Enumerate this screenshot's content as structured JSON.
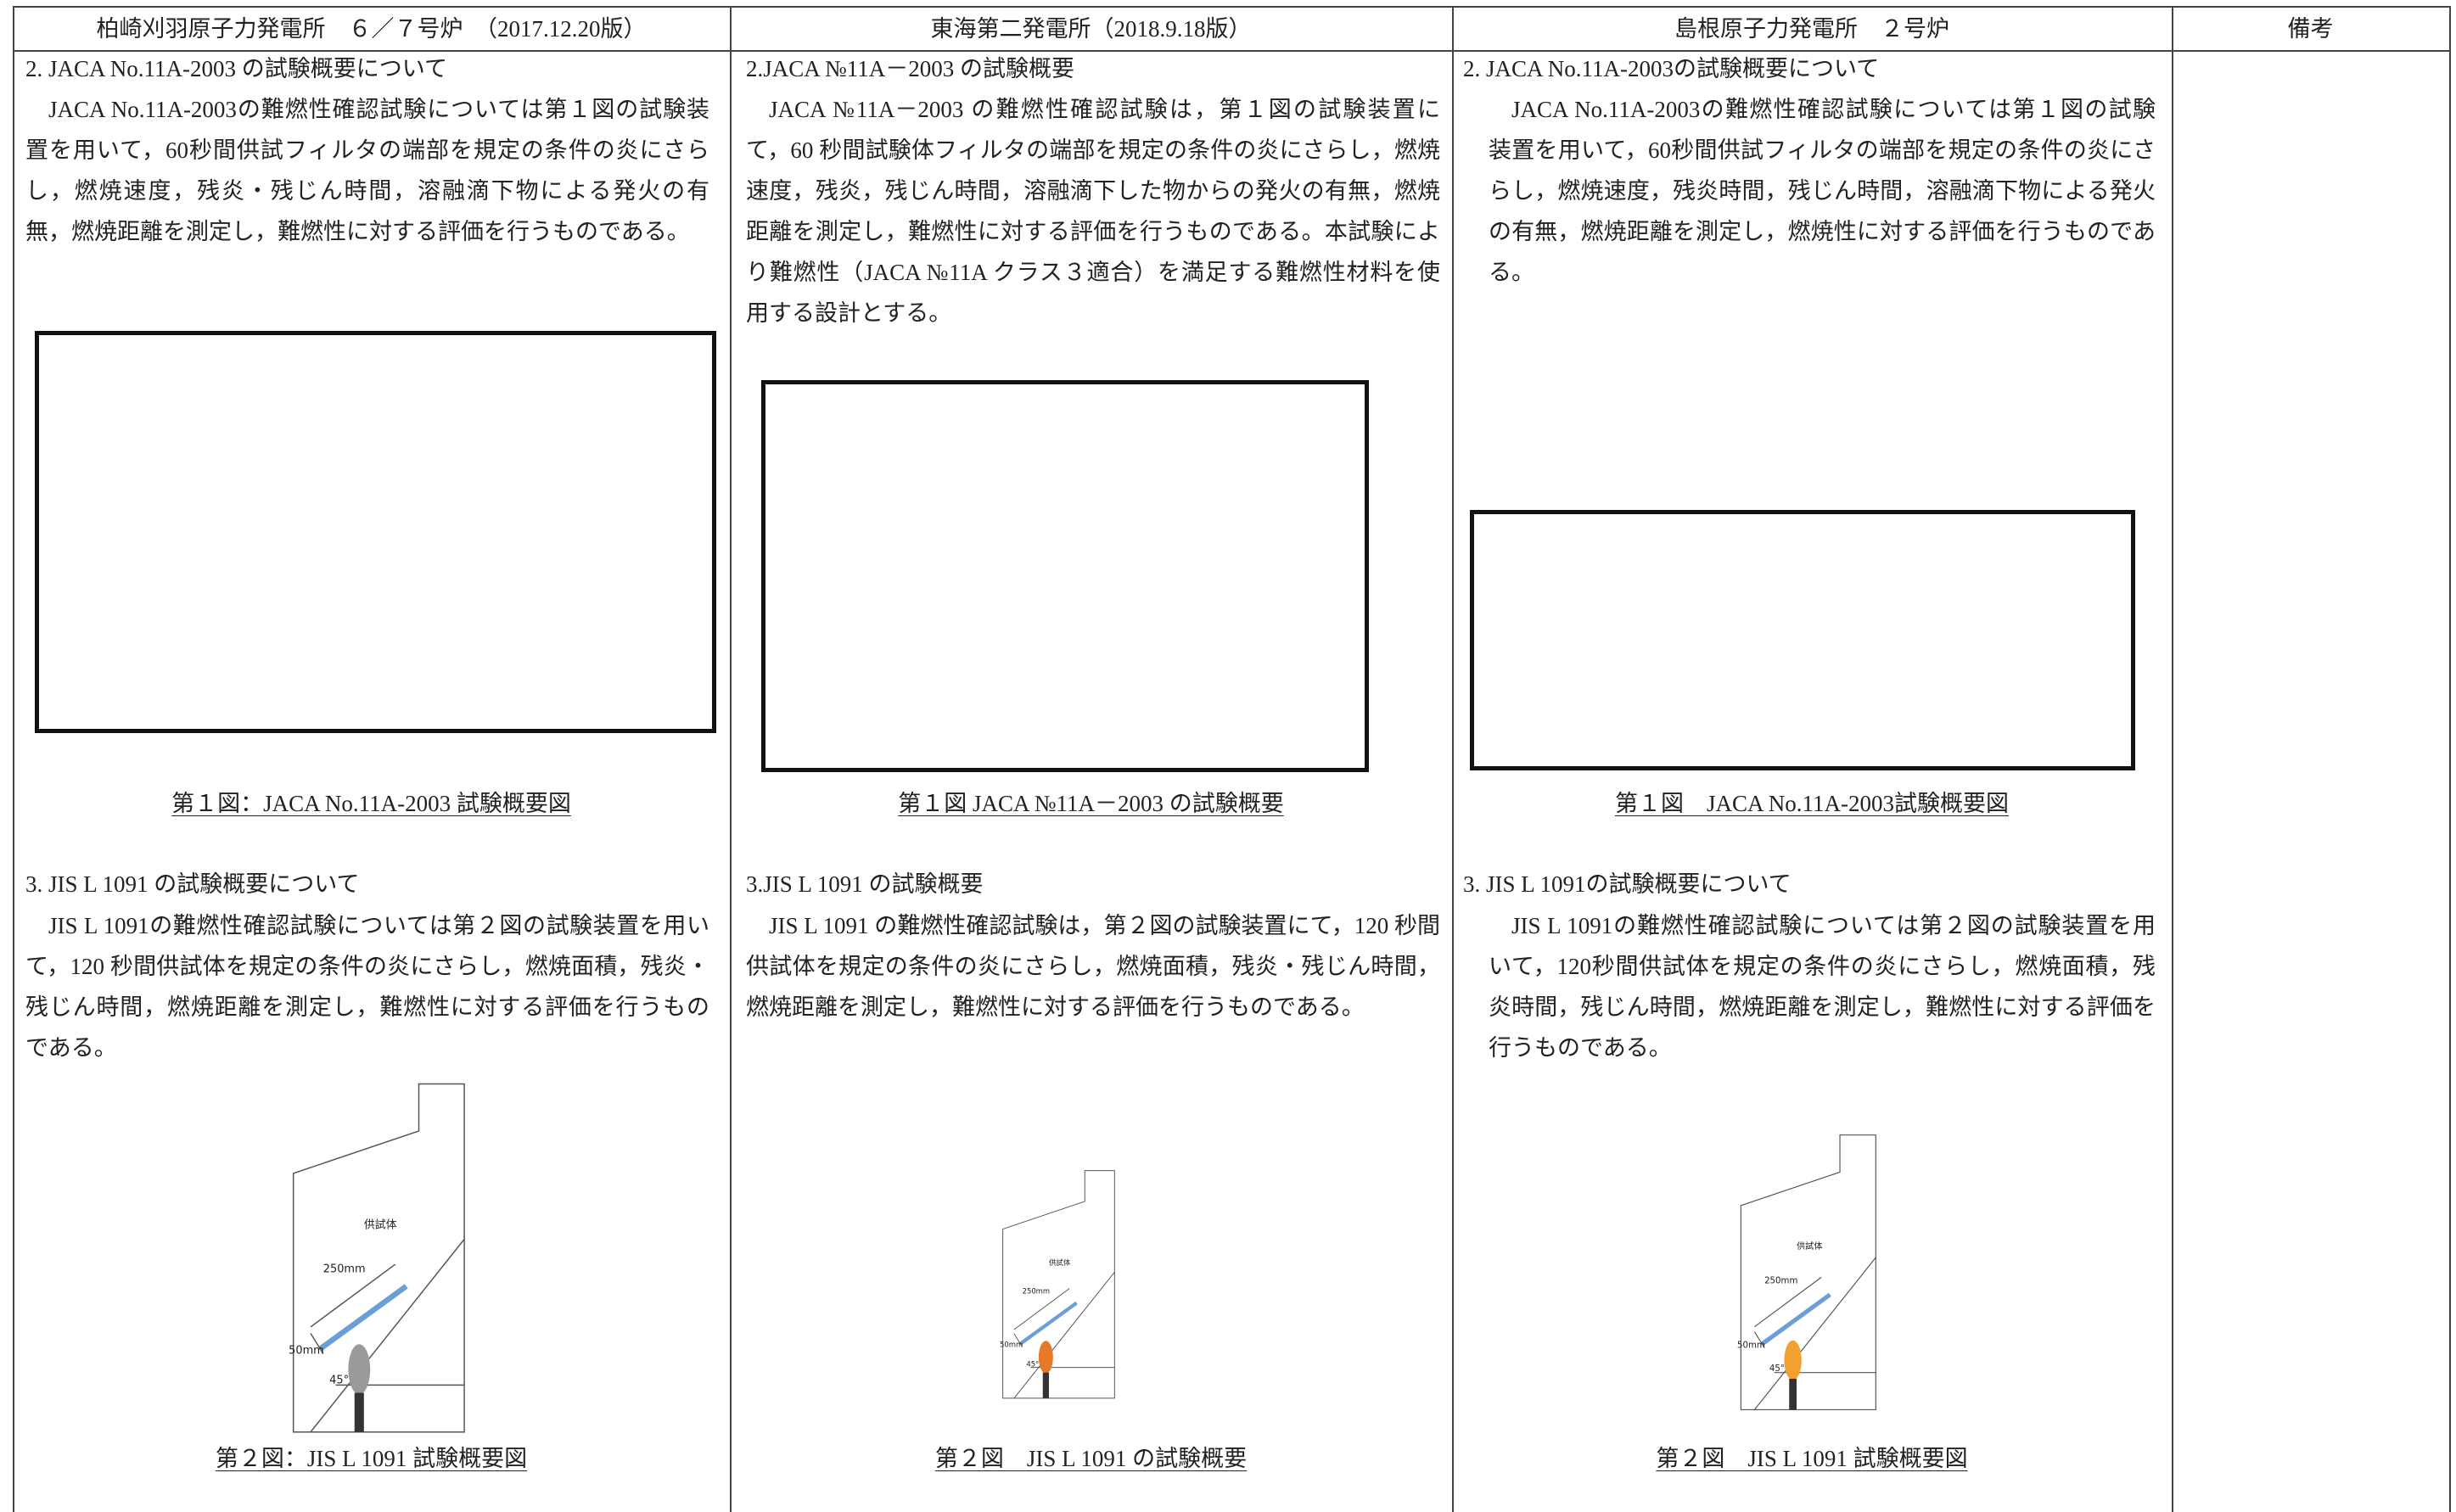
{
  "header": [
    "柏崎刈羽原子力発電所　６／７号炉　（2017.12.20版）",
    "東海第二発電所（2018.9.18版）",
    "島根原子力発電所　２号炉",
    "備考"
  ],
  "columns": [
    {
      "section2_title": "2.  JACA No.11A-2003 の試験概要について",
      "section2_text": "JACA No.11A-2003の難燃性確認試験については第１図の試験装置を用いて，60秒間供試フィルタの端部を規定の条件の炎にさらし，燃焼速度，残炎・残じん時間，溶融滴下物による発火の有無，燃焼距離を測定し，難燃性に対する評価を行うものである。",
      "figure1_caption": "第１図：JACA No.11A-2003  試験概要図",
      "section3_title": "3.  JIS L 1091 の試験概要について",
      "section3_text": "JIS L 1091の難燃性確認試験については第２図の試験装置を用いて，120 秒間供試体を規定の条件の炎にさらし，燃焼面積，残炎・残じん時間，燃焼距離を測定し，難燃性に対する評価を行うものである。",
      "figure2_labels": {
        "specimen": "供試体",
        "length": "250mm",
        "offset": "50mm",
        "angle": "45°"
      },
      "figure2_caption": "第２図：JIS L 1091  試験概要図"
    },
    {
      "section2_title": "2.JACA №11A－2003 の試験概要",
      "section2_text": "JACA №11A－2003 の難燃性確認試験は，第１図の試験装置にて，60 秒間試験体フィルタの端部を規定の条件の炎にさらし，燃焼速度，残炎，残じん時間，溶融滴下した物からの発火の有無，燃焼距離を測定し，難燃性に対する評価を行うものである。本試験により難燃性（JACA №11A クラス３適合）を満足する難燃性材料を使用する設計とする。",
      "figure1_caption": "第１図 JACA №11A－2003 の試験概要",
      "section3_title": "3.JIS L 1091 の試験概要",
      "section3_text": "JIS L 1091 の難燃性確認試験は，第２図の試験装置にて，120 秒間供試体を規定の条件の炎にさらし，燃焼面積，残炎・残じん時間，燃焼距離を測定し，難燃性に対する評価を行うものである。",
      "figure2_labels": {
        "specimen": "供試体",
        "length": "250mm",
        "offset": "50mm",
        "angle": "45°"
      },
      "figure2_caption": "第２図　JIS L 1091 の試験概要"
    },
    {
      "section2_title": "2.  JACA No.11A-2003の試験概要について",
      "section2_text": "JACA No.11A-2003の難燃性確認試験については第１図の試験装置を用いて，60秒間供試フィルタの端部を規定の条件の炎にさらし，燃焼速度，残炎時間，残じん時間，溶融滴下物による発火の有無，燃焼距離を測定し，燃焼性に対する評価を行うものである。",
      "figure1_caption": "第１図　JACA No.11A-2003試験概要図",
      "section3_title": "3.  JIS L 1091の試験概要について",
      "section3_text": "JIS L 1091の難燃性確認試験については第２図の試験装置を用いて，120秒間供試体を規定の条件の炎にさらし，燃焼面積，残炎時間，残じん時間，燃焼距離を測定し，難燃性に対する評価を行うものである。",
      "figure2_labels": {
        "specimen": "供試体",
        "length": "250mm",
        "offset": "50mm",
        "angle": "45°"
      },
      "figure2_caption": "第２図　JIS L 1091  試験概要図"
    }
  ]
}
